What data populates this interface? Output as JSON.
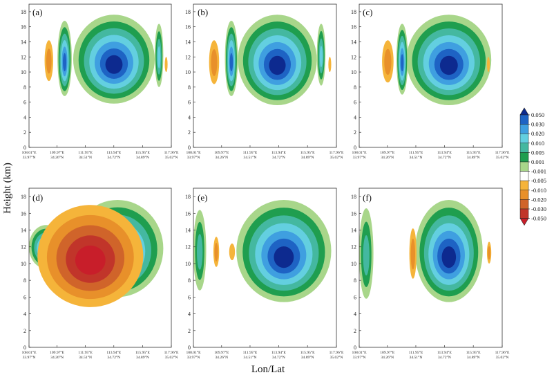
{
  "chart_data": {
    "type": "heatmap",
    "xlabel": "Lon/Lat",
    "ylabel": "Height (km)",
    "ylim": [
      0,
      19
    ],
    "y_ticks": [
      0,
      2,
      4,
      6,
      8,
      10,
      12,
      14,
      16,
      18
    ],
    "x_ticks": [
      {
        "lon": "108.01°E",
        "lat": "33.97°N"
      },
      {
        "lon": "109.97°E",
        "lat": "34.26°N"
      },
      {
        "lon": "111.95°E",
        "lat": "34.51°N"
      },
      {
        "lon": "113.94°E",
        "lat": "34.72°N"
      },
      {
        "lon": "115.95°E",
        "lat": "34.89°N"
      },
      {
        "lon": "117.96°E",
        "lat": "35.02°N"
      }
    ],
    "colorbar": {
      "levels": [
        "0.050",
        "0.030",
        "0.020",
        "0.010",
        "0.005",
        "0.001",
        "-0.001",
        "-0.005",
        "-0.010",
        "-0.020",
        "-0.030",
        "-0.050"
      ],
      "colors": [
        "#0d2a8f",
        "#1e63c4",
        "#3f9fe0",
        "#63cfe0",
        "#44b8a0",
        "#1f9e4f",
        "#a8d68a",
        "#ffffff",
        "#f5b43a",
        "#e8902a",
        "#d0642a",
        "#c1352a",
        "#c81e2a"
      ]
    },
    "panels": [
      {
        "label": "(a)",
        "features": [
          {
            "x": [
              111.1,
              116.8
            ],
            "z": [
              5.8,
              17.6
            ],
            "class": "pos",
            "max": 0.05
          },
          {
            "x": [
              110.0,
              111.0
            ],
            "z": [
              6.8,
              16.8
            ],
            "class": "pos",
            "max": 0.03
          },
          {
            "x": [
              116.8,
              117.4
            ],
            "z": [
              8.0,
              16.4
            ],
            "class": "pos",
            "max": 0.02
          },
          {
            "x": [
              109.1,
              109.7
            ],
            "z": [
              8.8,
              14.2
            ],
            "class": "neg",
            "max": -0.01
          },
          {
            "x": [
              117.5,
              117.7
            ],
            "z": [
              10.0,
              12.0
            ],
            "class": "neg",
            "max": -0.005
          }
        ]
      },
      {
        "label": "(b)",
        "features": [
          {
            "x": [
              111.1,
              116.6
            ],
            "z": [
              5.6,
              17.6
            ],
            "class": "pos",
            "max": 0.05
          },
          {
            "x": [
              110.2,
              111.1
            ],
            "z": [
              6.8,
              16.8
            ],
            "class": "pos",
            "max": 0.03
          },
          {
            "x": [
              116.6,
              117.2
            ],
            "z": [
              8.2,
              16.4
            ],
            "class": "pos",
            "max": 0.02
          },
          {
            "x": [
              109.1,
              109.8
            ],
            "z": [
              8.4,
              14.2
            ],
            "class": "neg",
            "max": -0.01
          },
          {
            "x": [
              117.4,
              117.6
            ],
            "z": [
              10.0,
              12.0
            ],
            "class": "neg",
            "max": -0.005
          }
        ]
      },
      {
        "label": "(c)",
        "features": [
          {
            "x": [
              111.3,
              117.2
            ],
            "z": [
              5.6,
              17.6
            ],
            "class": "pos",
            "max": 0.05
          },
          {
            "x": [
              110.6,
              111.4
            ],
            "z": [
              7.0,
              16.4
            ],
            "class": "pos",
            "max": 0.03
          },
          {
            "x": [
              109.6,
              110.4
            ],
            "z": [
              8.6,
              14.2
            ],
            "class": "neg",
            "max": -0.01
          },
          {
            "x": [
              116.9,
              117.1
            ],
            "z": [
              10.0,
              12.0
            ],
            "class": "neg",
            "max": -0.005
          }
        ]
      },
      {
        "label": "(d)",
        "features": [
          {
            "x": [
              108.0,
              110.4
            ],
            "z": [
              9.4,
              14.6
            ],
            "class": "pos",
            "max": 0.03
          },
          {
            "x": [
              111.0,
              117.4
            ],
            "z": [
              6.0,
              17.6
            ],
            "class": "pos",
            "max": 0.05
          },
          {
            "x": [
              108.6,
              116.0
            ],
            "z": [
              4.8,
              17.0
            ],
            "class": "neg",
            "max": -0.05
          }
        ]
      },
      {
        "label": "(e)",
        "features": [
          {
            "x": [
              111.0,
              117.6
            ],
            "z": [
              5.4,
              17.6
            ],
            "class": "pos",
            "max": 0.05
          },
          {
            "x": [
              108.0,
              108.9
            ],
            "z": [
              6.8,
              16.4
            ],
            "class": "pos",
            "max": 0.01
          },
          {
            "x": [
              109.4,
              109.8
            ],
            "z": [
              9.6,
              13.2
            ],
            "class": "neg",
            "max": -0.01
          },
          {
            "x": [
              110.5,
              110.9
            ],
            "z": [
              10.4,
              12.4
            ],
            "class": "neg",
            "max": -0.005
          }
        ]
      },
      {
        "label": "(f)",
        "features": [
          {
            "x": [
              111.9,
              116.6
            ],
            "z": [
              5.4,
              17.6
            ],
            "class": "pos",
            "max": 0.05
          },
          {
            "x": [
              108.0,
              109.0
            ],
            "z": [
              5.8,
              16.6
            ],
            "class": "pos",
            "max": 0.01
          },
          {
            "x": [
              111.5,
              112.0
            ],
            "z": [
              8.2,
              14.2
            ],
            "class": "neg",
            "max": -0.01
          },
          {
            "x": [
              116.9,
              117.2
            ],
            "z": [
              10.0,
              12.6
            ],
            "class": "neg",
            "max": -0.01
          }
        ]
      }
    ]
  }
}
